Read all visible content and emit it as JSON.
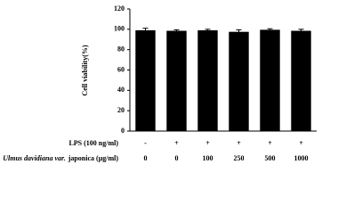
{
  "chart_data": {
    "type": "bar",
    "y_label": "Cell viability(%)",
    "categories": [
      "0",
      "0",
      "100",
      "250",
      "500",
      "1000"
    ],
    "values": [
      99,
      98.5,
      99,
      97.5,
      99.5,
      98.5
    ],
    "errors": [
      2,
      1,
      1,
      2,
      1,
      1.5
    ],
    "color": "#000000",
    "ylim": [
      0,
      120
    ],
    "yticks": [
      0,
      20,
      40,
      60,
      80,
      100,
      120
    ],
    "x_rows": [
      {
        "label": "LPS (100 ng/ml)",
        "categories": [
          "-",
          "+",
          "+",
          "+",
          "+",
          "+"
        ]
      },
      {
        "label_species": "Ulmus davidiana var.",
        "label": "japonica (μg/ml)"
      }
    ]
  }
}
